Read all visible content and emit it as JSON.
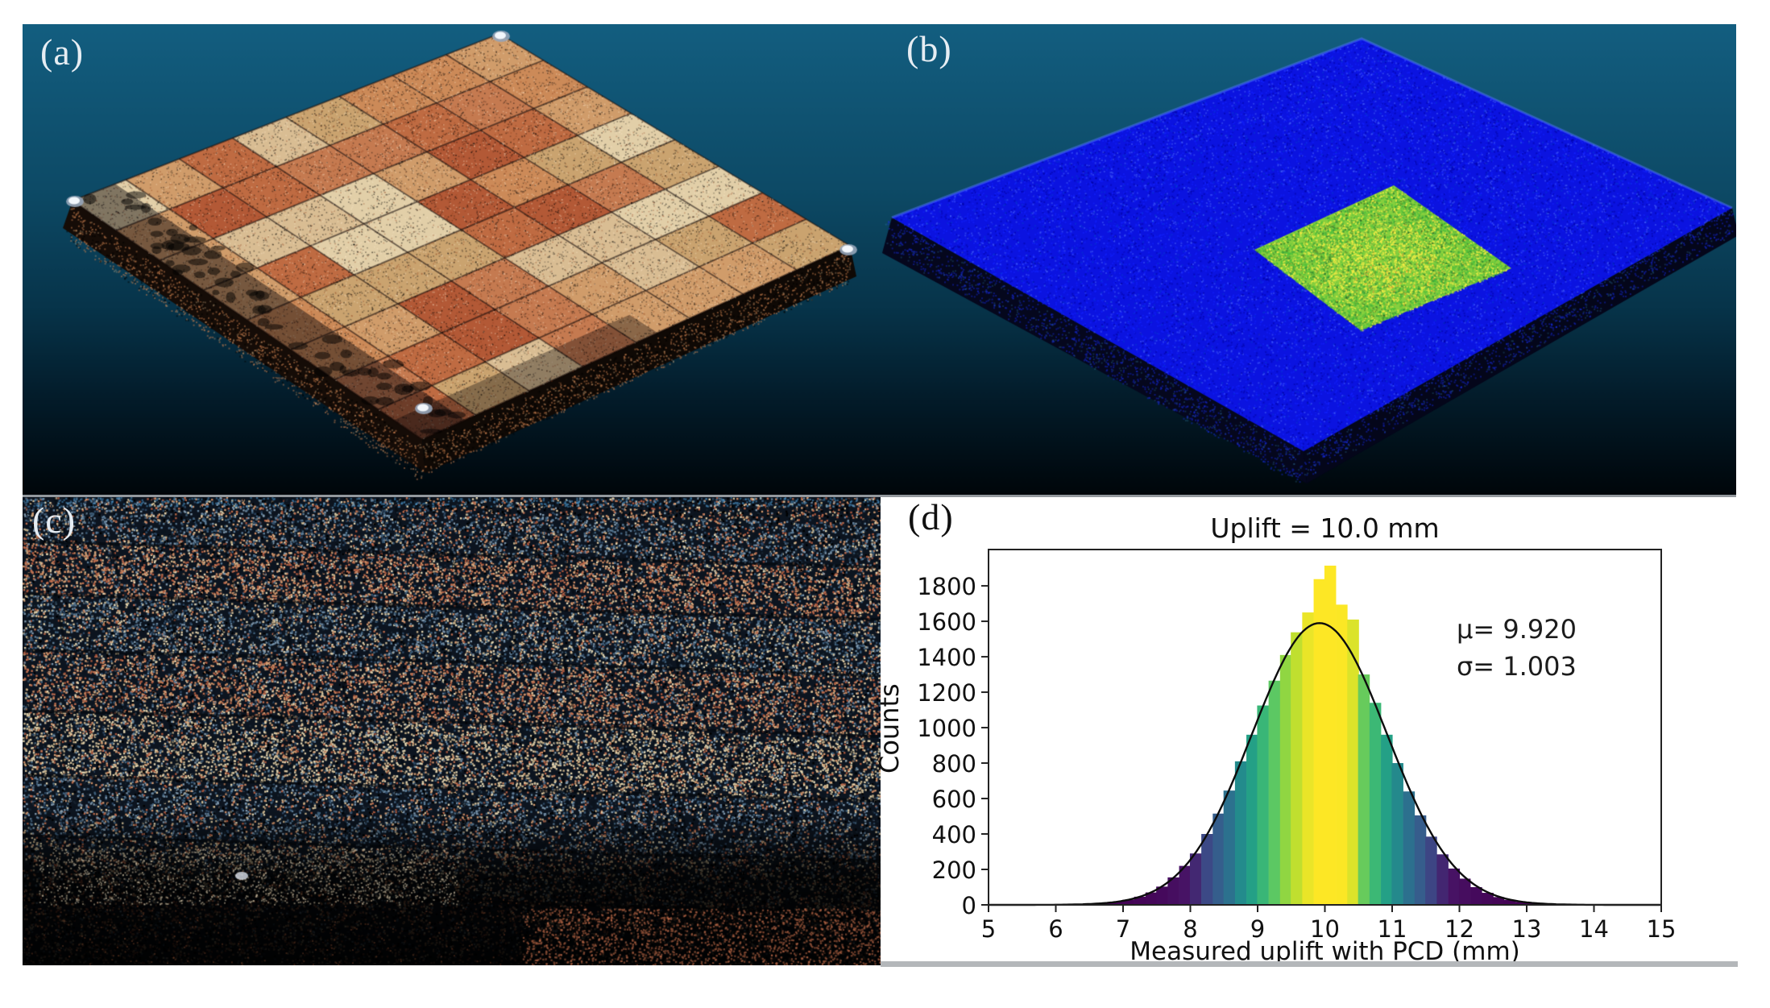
{
  "panels": {
    "a": {
      "label": "(a)",
      "kind": "point-cloud-paver-surface"
    },
    "b": {
      "label": "(b)",
      "kind": "point-cloud-deviation-map"
    },
    "c": {
      "label": "(c)",
      "kind": "point-cloud-closeup"
    },
    "d": {
      "label": "(d)",
      "kind": "histogram"
    }
  },
  "colors": {
    "background_gradient": [
      "#135e80",
      "#0d4a66",
      "#07344a",
      "#031b29",
      "#00060a"
    ],
    "paver_palette": [
      "#bf6b42",
      "#cc8a58",
      "#d9bd93",
      "#e2cfa8",
      "#b35936",
      "#d09c6a",
      "#c57a50",
      "#caa36f"
    ],
    "slab_blue": "#0b13e0",
    "patch_green": "#86cf3e",
    "patch_yellow": "#f0ec46",
    "panel_label_light": "#e6edf3",
    "panel_label_dark": "#101010",
    "axis_color": "#222222",
    "gray_strip": "#b4b7ba"
  },
  "chart_data": {
    "type": "bar",
    "subtype": "histogram-with-gaussian-fit",
    "title": "Uplift =  10.0 mm",
    "xlabel": "Measured uplift with PCD (mm)",
    "ylabel": "Counts",
    "xlim": [
      5,
      15
    ],
    "ylim": [
      0,
      2005
    ],
    "xticks": [
      5,
      6,
      7,
      8,
      9,
      10,
      11,
      12,
      13,
      14,
      15
    ],
    "yticks": [
      0,
      200,
      400,
      600,
      800,
      1000,
      1200,
      1400,
      1600,
      1800
    ],
    "grid": false,
    "legend": "none",
    "bin_width": 0.1667,
    "centers": [
      5.92,
      6.08,
      6.25,
      6.42,
      6.58,
      6.75,
      6.92,
      7.08,
      7.25,
      7.42,
      7.58,
      7.75,
      7.92,
      8.08,
      8.25,
      8.42,
      8.58,
      8.75,
      8.92,
      9.08,
      9.25,
      9.42,
      9.58,
      9.75,
      9.92,
      10.08,
      10.25,
      10.42,
      10.58,
      10.75,
      10.92,
      11.08,
      11.25,
      11.42,
      11.58,
      11.75,
      11.92,
      12.08,
      12.25,
      12.42,
      12.58,
      12.75,
      12.92,
      13.08,
      13.25,
      13.42
    ],
    "counts": [
      1,
      1,
      2,
      4,
      6,
      11,
      18,
      29,
      46,
      70,
      103,
      155,
      220,
      290,
      400,
      515,
      645,
      810,
      960,
      1125,
      1265,
      1410,
      1538,
      1650,
      1838,
      1914,
      1694,
      1610,
      1300,
      1140,
      960,
      800,
      640,
      505,
      385,
      285,
      205,
      148,
      100,
      68,
      44,
      28,
      17,
      10,
      6,
      4
    ],
    "fit": {
      "mu": 9.92,
      "sigma": 1.003,
      "amplitude": 1590,
      "mu_label": "μ= 9.920",
      "sigma_label": "σ= 1.003",
      "curve_color": "#0d0d0d"
    },
    "colormap_stops": [
      [
        0.0,
        "#440154"
      ],
      [
        0.13,
        "#471365"
      ],
      [
        0.25,
        "#3b518b"
      ],
      [
        0.38,
        "#2c718e"
      ],
      [
        0.5,
        "#21918c"
      ],
      [
        0.62,
        "#27ad81"
      ],
      [
        0.75,
        "#5ec962"
      ],
      [
        0.87,
        "#aadc32"
      ],
      [
        1.0,
        "#fde725"
      ]
    ],
    "color_normalize_max": 1700
  }
}
